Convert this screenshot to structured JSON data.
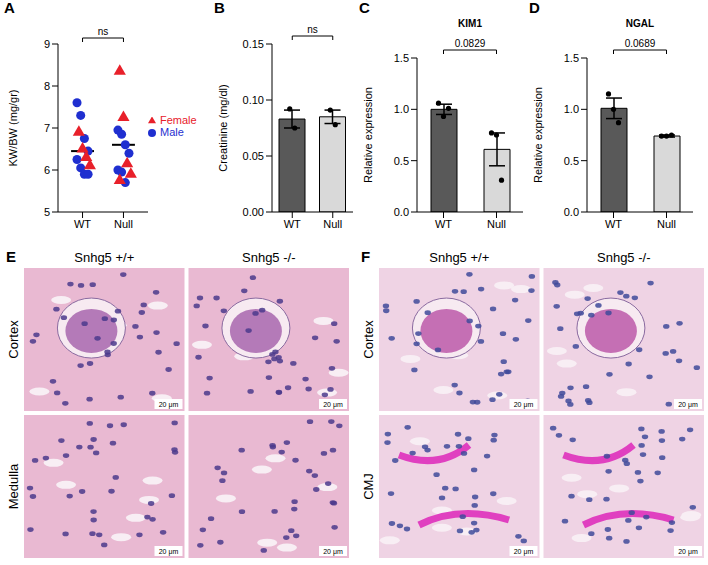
{
  "chart_data": [
    {
      "panel": "A",
      "type": "scatter",
      "categories": [
        "WT",
        "Null"
      ],
      "y_label": "KW/BW (mg/gr)",
      "ylim": [
        5,
        9
      ],
      "yticks": [
        5,
        6,
        7,
        8,
        9
      ],
      "legend": "right",
      "means": [
        6.45,
        6.6
      ],
      "annotation": "ns",
      "series": [
        {
          "name": "Male",
          "color": "#1f2fd0",
          "marker": "circle",
          "values": [
            [
              7.6,
              7.3,
              6.75,
              6.45,
              6.25,
              6.05,
              5.9,
              5.9
            ],
            [
              6.95,
              6.85,
              6.6,
              6.4,
              6.0,
              5.95,
              5.7
            ]
          ]
        },
        {
          "name": "Female",
          "color": "#e8202a",
          "marker": "triangle",
          "values": [
            [
              6.9,
              6.5,
              6.3,
              6.1
            ],
            [
              8.35,
              7.25,
              6.15,
              5.9,
              5.75
            ]
          ]
        }
      ]
    },
    {
      "panel": "B",
      "type": "bar",
      "categories": [
        "WT",
        "Null"
      ],
      "values": [
        0.083,
        0.085
      ],
      "errors": [
        0.008,
        0.006
      ],
      "points": [
        [
          0.092,
          0.075
        ],
        [
          0.091,
          0.078
        ]
      ],
      "colors": [
        "#595959",
        "#d9d9d9"
      ],
      "y_label": "Creatinine (mg/dl)",
      "ylim": [
        0,
        0.15
      ],
      "yticks": [
        {
          "value": 0,
          "label": "0.00"
        },
        {
          "value": 0.05,
          "label": "0.05"
        },
        {
          "value": 0.1,
          "label": "0.10"
        },
        {
          "value": 0.15,
          "label": "0.15"
        }
      ],
      "annotation": "ns"
    },
    {
      "panel": "C",
      "type": "bar",
      "title": "KIM1",
      "categories": [
        "WT",
        "Null"
      ],
      "values": [
        1.0,
        0.61
      ],
      "errors": [
        0.05,
        0.16
      ],
      "points": [
        [
          1.06,
          0.93,
          1.01
        ],
        [
          0.77,
          0.75,
          0.31
        ]
      ],
      "colors": [
        "#595959",
        "#d9d9d9"
      ],
      "y_label": "Relative expression",
      "ylim": [
        0,
        1.5
      ],
      "yticks": [
        {
          "value": 0,
          "label": "0.0"
        },
        {
          "value": 0.5,
          "label": "0.5"
        },
        {
          "value": 1,
          "label": "1.0"
        },
        {
          "value": 1.5,
          "label": "1.5"
        }
      ],
      "annotation": "0.0829"
    },
    {
      "panel": "D",
      "type": "bar",
      "title": "NGAL",
      "categories": [
        "WT",
        "Null"
      ],
      "values": [
        1.01,
        0.74
      ],
      "errors": [
        0.1,
        0.01
      ],
      "points": [
        [
          1.15,
          1.0,
          0.87
        ],
        [
          0.74,
          0.74,
          0.75
        ]
      ],
      "colors": [
        "#595959",
        "#d9d9d9"
      ],
      "y_label": "Relative expression",
      "ylim": [
        0,
        1.5
      ],
      "yticks": [
        {
          "value": 0,
          "label": "0.0"
        },
        {
          "value": 0.5,
          "label": "0.5"
        },
        {
          "value": 1,
          "label": "1.0"
        },
        {
          "value": 1.5,
          "label": "1.5"
        }
      ],
      "annotation": "0.0689"
    }
  ],
  "image_panels": [
    {
      "panel": "E",
      "columns": [
        "Snhg5 +/+",
        "Snhg5 -/-"
      ],
      "rows": [
        "Cortex",
        "Medulla"
      ],
      "scale_bar": "20 μm"
    },
    {
      "panel": "F",
      "columns": [
        "Snhg5 +/+",
        "Snhg5 -/-"
      ],
      "rows": [
        "Cortex",
        "CMJ"
      ],
      "scale_bar": "20 μm"
    }
  ]
}
